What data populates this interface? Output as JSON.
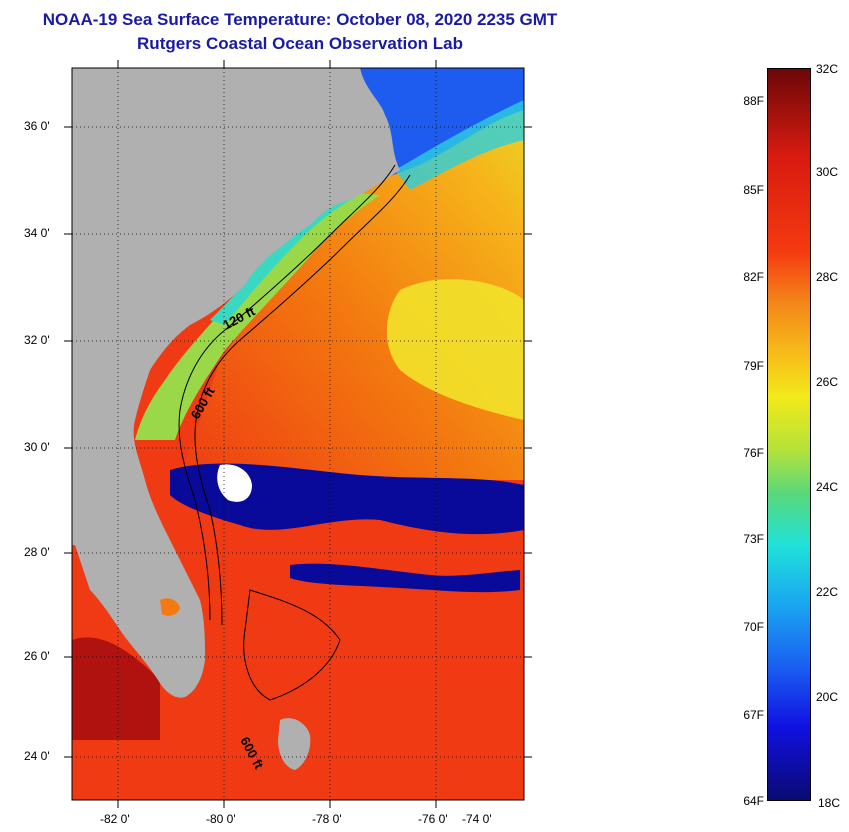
{
  "title_line1": "NOAA-19 Sea Surface Temperature:  October 08, 2020 2235 GMT",
  "title_line2": "Rutgers Coastal Ocean Observation Lab",
  "lat_labels": [
    "36 0'",
    "34 0'",
    "32 0'",
    "30 0'",
    "28 0'",
    "26 0'",
    "24 0'"
  ],
  "lon_labels": [
    "-82 0'",
    "-80 0'",
    "-78 0'",
    "-76 0'",
    "-74 0'"
  ],
  "contour_labels": [
    "120 ft",
    "600 ft",
    "600 ft"
  ],
  "colorbar": {
    "fahrenheit": [
      "88F",
      "85F",
      "82F",
      "79F",
      "76F",
      "73F",
      "70F",
      "67F",
      "64F"
    ],
    "celsius": [
      "32C",
      "30C",
      "28C",
      "26C",
      "24C",
      "22C",
      "20C",
      "18C"
    ]
  },
  "colors": {
    "land": "#b0b0b0",
    "cloud": "#0a0a9a",
    "warm": "#ee2a10",
    "hot": "#a81010",
    "orange": "#f37a10",
    "yellow": "#f4e21a",
    "green": "#b6e23a",
    "cyan": "#3de0d0",
    "blue": "#1e5cf0"
  }
}
